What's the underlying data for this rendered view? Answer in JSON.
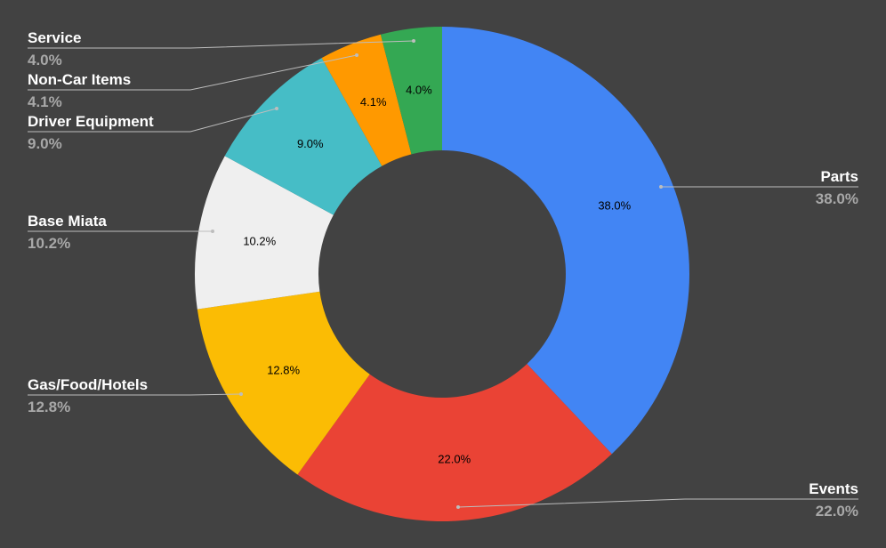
{
  "chart_data": {
    "type": "pie",
    "donut": true,
    "title": "",
    "background": "#424242",
    "slices": [
      {
        "name": "Parts",
        "value": 38.0,
        "label": "38.0%",
        "color": "#4285f4"
      },
      {
        "name": "Events",
        "value": 22.0,
        "label": "22.0%",
        "color": "#ea4335"
      },
      {
        "name": "Gas/Food/Hotels",
        "value": 12.8,
        "label": "12.8%",
        "color": "#fbbc04"
      },
      {
        "name": "Base Miata",
        "value": 10.2,
        "label": "10.2%",
        "color": "#efefef"
      },
      {
        "name": "Driver Equipment",
        "value": 9.0,
        "label": "9.0%",
        "color": "#46bdc6"
      },
      {
        "name": "Non-Car Items",
        "value": 4.1,
        "label": "4.1%",
        "color": "#ff9900"
      },
      {
        "name": "Service",
        "value": 4.0,
        "label": "4.0%",
        "color": "#34a853"
      }
    ],
    "start_angle_deg": 0,
    "direction": "clockwise",
    "legend": "labeled leader lines"
  }
}
